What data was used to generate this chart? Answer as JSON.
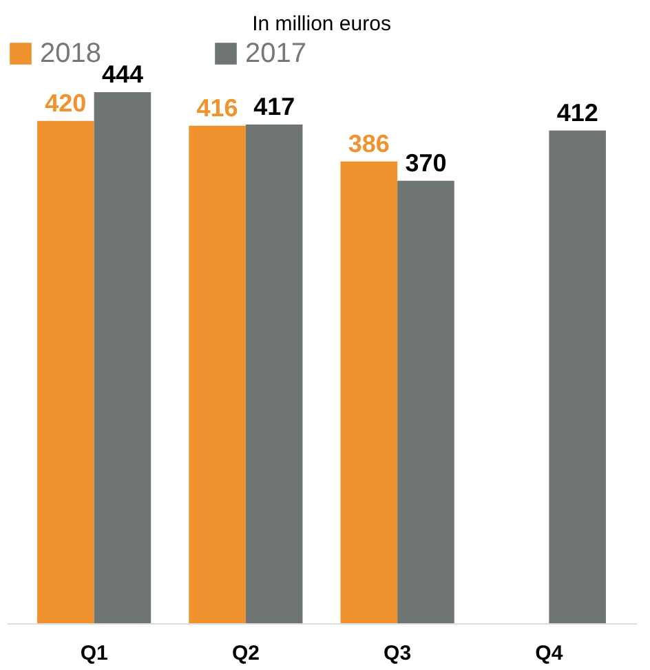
{
  "chart_data": {
    "type": "bar",
    "title": "In million euros",
    "categories": [
      "Q1",
      "Q2",
      "Q3",
      "Q4"
    ],
    "series": [
      {
        "name": "2018",
        "color": "#f0922e",
        "values": [
          420,
          416,
          386,
          null
        ]
      },
      {
        "name": "2017",
        "color": "#6f7572",
        "values": [
          444,
          417,
          370,
          412
        ]
      }
    ],
    "data_labels": true,
    "legend": "top",
    "grid": false,
    "tick_labels": "x"
  }
}
